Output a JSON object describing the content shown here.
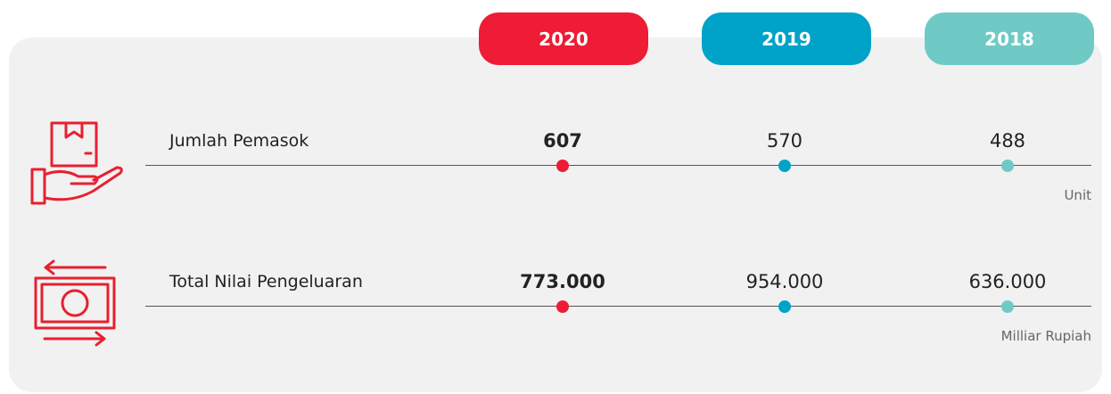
{
  "years": [
    {
      "label": "2020",
      "color": "#ee1c35"
    },
    {
      "label": "2019",
      "color": "#00a3c8"
    },
    {
      "label": "2018",
      "color": "#6fcac6"
    }
  ],
  "rows": [
    {
      "label": "Jumlah Pemasok",
      "values": [
        "607",
        "570",
        "488"
      ],
      "unit": "Unit"
    },
    {
      "label": "Total Nilai Pengeluaran",
      "values": [
        "773.000",
        "954.000",
        "636.000"
      ],
      "unit": "Milliar Rupiah"
    }
  ]
}
